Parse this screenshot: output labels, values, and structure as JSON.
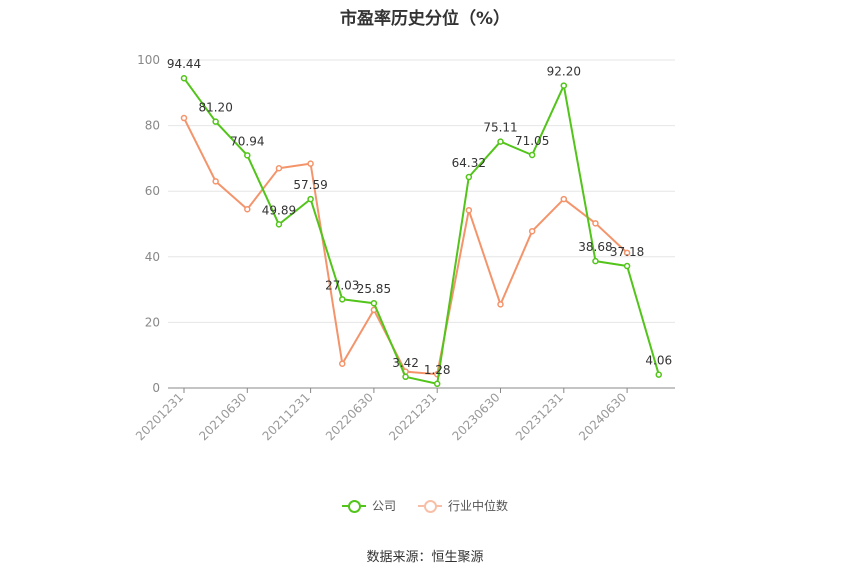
{
  "chart_data": {
    "type": "line",
    "title": "市盈率历史分位（%）",
    "source": "数据来源：恒生聚源",
    "ylim": [
      0,
      100
    ],
    "yticks": [
      0,
      20,
      40,
      60,
      80,
      100
    ],
    "grid": true,
    "legend_position": "bottom-center",
    "x_tick_labels": [
      "20201231",
      "20210630",
      "20211231",
      "20220630",
      "20221231",
      "20230630",
      "20231231",
      "20240630"
    ],
    "x": [
      "20201231",
      "20210331",
      "20210630",
      "20210930",
      "20211231",
      "20220331",
      "20220630",
      "20220930",
      "20221231",
      "20230331",
      "20230630",
      "20230930",
      "20231231",
      "20240331",
      "20240630",
      "20240930"
    ],
    "series": [
      {
        "name": "公司",
        "color": "#52c41a",
        "values": [
          94.44,
          81.2,
          70.94,
          49.89,
          57.59,
          27.03,
          25.85,
          3.42,
          1.28,
          64.32,
          75.11,
          71.05,
          92.2,
          38.68,
          37.18,
          4.06
        ],
        "labels": [
          "94.44",
          "81.20",
          "70.94",
          "49.89",
          "57.59",
          "27.03",
          "25.85",
          "3.42",
          "1.28",
          "64.32",
          "75.11",
          "71.05",
          "92.20",
          "38.68",
          "37.18",
          "4.06"
        ]
      },
      {
        "name": "行业中位数",
        "color": "#f4946b",
        "values": [
          82.3,
          63.0,
          54.5,
          67.0,
          68.4,
          7.4,
          23.8,
          5.0,
          4.2,
          54.2,
          25.5,
          47.8,
          57.6,
          50.2,
          41.2,
          null
        ]
      }
    ]
  }
}
